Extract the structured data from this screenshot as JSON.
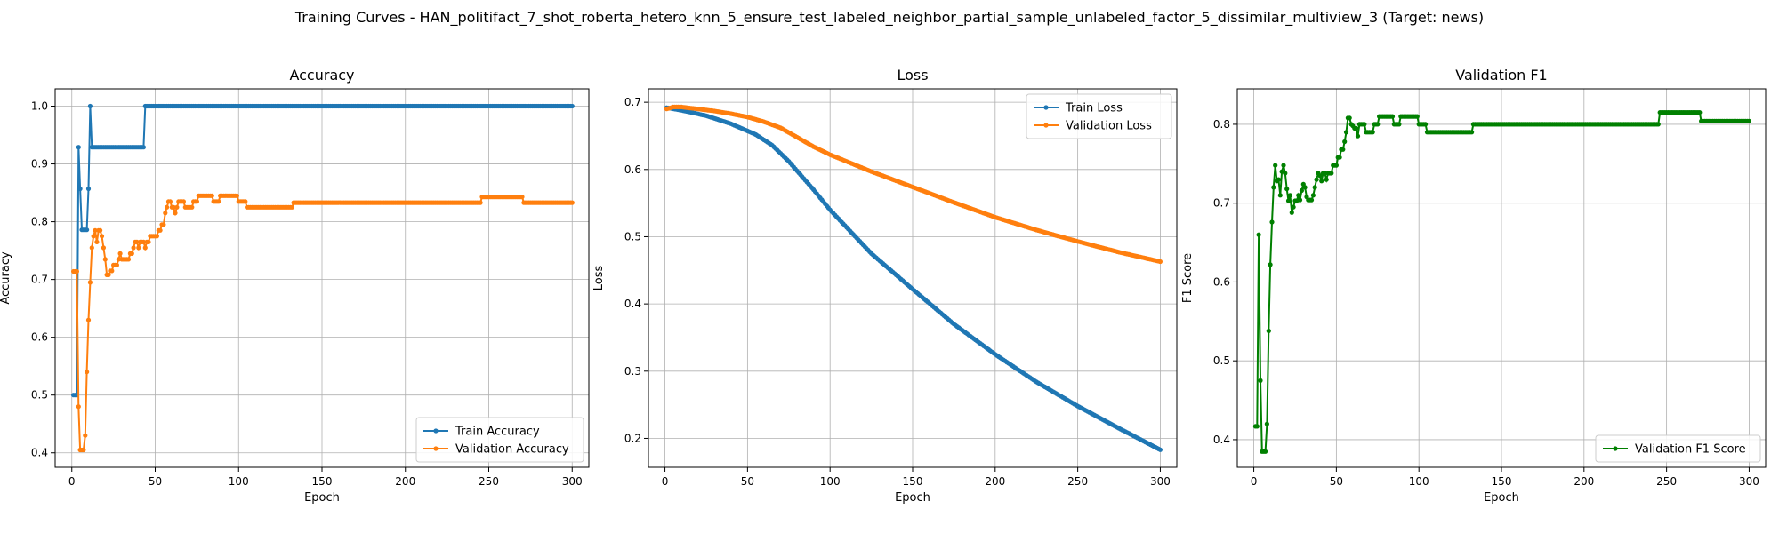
{
  "figure": {
    "suptitle": "Training Curves - HAN_politifact_7_shot_roberta_hetero_knn_5_ensure_test_labeled_neighbor_partial_sample_unlabeled_factor_5_dissimilar_multiview_3 (Target: news)"
  },
  "colors": {
    "blue": "#1f77b4",
    "orange": "#ff7f0e",
    "green": "#008000"
  },
  "chart_data": [
    {
      "type": "line",
      "title": "Accuracy",
      "xlabel": "Epoch",
      "ylabel": "Accuracy",
      "xlim": [
        -10,
        310
      ],
      "ylim": [
        0.375,
        1.03
      ],
      "xticks": [
        0,
        50,
        100,
        150,
        200,
        250,
        300
      ],
      "yticks": [
        0.4,
        0.5,
        0.6,
        0.7,
        0.8,
        0.9,
        1.0
      ],
      "grid": true,
      "legend": "lower-right",
      "series": [
        {
          "name": "Train Accuracy",
          "color": "#1f77b4",
          "points": [
            [
              1,
              0.5
            ],
            [
              2,
              0.5
            ],
            [
              3,
              0.5
            ],
            [
              4,
              0.929
            ],
            [
              5,
              0.857
            ],
            [
              6,
              0.786
            ],
            [
              7,
              0.786
            ],
            [
              8,
              0.786
            ],
            [
              9,
              0.786
            ],
            [
              10,
              0.857
            ],
            [
              11,
              1.0
            ],
            [
              12,
              0.929
            ],
            [
              20,
              0.929
            ],
            [
              30,
              0.929
            ],
            [
              43,
              0.929
            ],
            [
              44,
              1.0
            ],
            [
              60,
              1.0
            ],
            [
              100,
              1.0
            ],
            [
              150,
              1.0
            ],
            [
              200,
              1.0
            ],
            [
              250,
              1.0
            ],
            [
              300,
              1.0
            ]
          ]
        },
        {
          "name": "Validation Accuracy",
          "color": "#ff7f0e",
          "points": [
            [
              1,
              0.714
            ],
            [
              2,
              0.714
            ],
            [
              3,
              0.714
            ],
            [
              4,
              0.48
            ],
            [
              5,
              0.405
            ],
            [
              6,
              0.405
            ],
            [
              7,
              0.405
            ],
            [
              8,
              0.43
            ],
            [
              9,
              0.54
            ],
            [
              10,
              0.63
            ],
            [
              11,
              0.695
            ],
            [
              12,
              0.755
            ],
            [
              13,
              0.775
            ],
            [
              14,
              0.785
            ],
            [
              15,
              0.765
            ],
            [
              16,
              0.785
            ],
            [
              17,
              0.785
            ],
            [
              18,
              0.775
            ],
            [
              19,
              0.755
            ],
            [
              20,
              0.735
            ],
            [
              21,
              0.708
            ],
            [
              22,
              0.708
            ],
            [
              23,
              0.715
            ],
            [
              24,
              0.715
            ],
            [
              25,
              0.725
            ],
            [
              26,
              0.725
            ],
            [
              27,
              0.725
            ],
            [
              28,
              0.735
            ],
            [
              29,
              0.745
            ],
            [
              30,
              0.735
            ],
            [
              31,
              0.735
            ],
            [
              32,
              0.735
            ],
            [
              33,
              0.735
            ],
            [
              34,
              0.735
            ],
            [
              35,
              0.745
            ],
            [
              36,
              0.745
            ],
            [
              37,
              0.755
            ],
            [
              38,
              0.765
            ],
            [
              39,
              0.765
            ],
            [
              40,
              0.755
            ],
            [
              41,
              0.765
            ],
            [
              42,
              0.765
            ],
            [
              43,
              0.765
            ],
            [
              44,
              0.755
            ],
            [
              45,
              0.765
            ],
            [
              46,
              0.765
            ],
            [
              47,
              0.775
            ],
            [
              48,
              0.775
            ],
            [
              49,
              0.775
            ],
            [
              50,
              0.775
            ],
            [
              51,
              0.775
            ],
            [
              52,
              0.785
            ],
            [
              53,
              0.785
            ],
            [
              54,
              0.795
            ],
            [
              55,
              0.795
            ],
            [
              56,
              0.815
            ],
            [
              57,
              0.825
            ],
            [
              58,
              0.835
            ],
            [
              59,
              0.835
            ],
            [
              60,
              0.825
            ],
            [
              61,
              0.825
            ],
            [
              62,
              0.815
            ],
            [
              63,
              0.825
            ],
            [
              64,
              0.835
            ],
            [
              65,
              0.835
            ],
            [
              66,
              0.835
            ],
            [
              67,
              0.835
            ],
            [
              68,
              0.825
            ],
            [
              69,
              0.825
            ],
            [
              70,
              0.825
            ],
            [
              71,
              0.825
            ],
            [
              72,
              0.825
            ],
            [
              73,
              0.835
            ],
            [
              74,
              0.835
            ],
            [
              75,
              0.835
            ],
            [
              76,
              0.845
            ],
            [
              80,
              0.845
            ],
            [
              84,
              0.845
            ],
            [
              85,
              0.835
            ],
            [
              88,
              0.835
            ],
            [
              89,
              0.845
            ],
            [
              99,
              0.845
            ],
            [
              100,
              0.835
            ],
            [
              104,
              0.835
            ],
            [
              105,
              0.825
            ],
            [
              132,
              0.825
            ],
            [
              133,
              0.833
            ],
            [
              245,
              0.833
            ],
            [
              246,
              0.843
            ],
            [
              270,
              0.843
            ],
            [
              271,
              0.833
            ],
            [
              300,
              0.833
            ]
          ]
        }
      ]
    },
    {
      "type": "line",
      "title": "Loss",
      "xlabel": "Epoch",
      "ylabel": "Loss",
      "xlim": [
        -10,
        310
      ],
      "ylim": [
        0.157,
        0.72
      ],
      "xticks": [
        0,
        50,
        100,
        150,
        200,
        250,
        300
      ],
      "yticks": [
        0.2,
        0.3,
        0.4,
        0.5,
        0.6,
        0.7
      ],
      "grid": true,
      "legend": "upper-right",
      "series": [
        {
          "name": "Train Loss",
          "color": "#1f77b4",
          "points": [
            [
              1,
              0.692
            ],
            [
              10,
              0.688
            ],
            [
              25,
              0.68
            ],
            [
              40,
              0.668
            ],
            [
              55,
              0.652
            ],
            [
              65,
              0.636
            ],
            [
              75,
              0.612
            ],
            [
              90,
              0.57
            ],
            [
              100,
              0.54
            ],
            [
              125,
              0.475
            ],
            [
              150,
              0.422
            ],
            [
              175,
              0.37
            ],
            [
              200,
              0.325
            ],
            [
              225,
              0.284
            ],
            [
              250,
              0.248
            ],
            [
              275,
              0.215
            ],
            [
              300,
              0.183
            ]
          ]
        },
        {
          "name": "Validation Loss",
          "color": "#ff7f0e",
          "points": [
            [
              1,
              0.69
            ],
            [
              5,
              0.693
            ],
            [
              10,
              0.693
            ],
            [
              20,
              0.69
            ],
            [
              30,
              0.687
            ],
            [
              40,
              0.683
            ],
            [
              50,
              0.678
            ],
            [
              60,
              0.671
            ],
            [
              70,
              0.662
            ],
            [
              80,
              0.648
            ],
            [
              90,
              0.634
            ],
            [
              100,
              0.622
            ],
            [
              125,
              0.597
            ],
            [
              150,
              0.574
            ],
            [
              175,
              0.551
            ],
            [
              200,
              0.529
            ],
            [
              225,
              0.51
            ],
            [
              250,
              0.493
            ],
            [
              275,
              0.477
            ],
            [
              300,
              0.463
            ]
          ]
        }
      ]
    },
    {
      "type": "line",
      "title": "Validation F1",
      "xlabel": "Epoch",
      "ylabel": "F1 Score",
      "xlim": [
        -10,
        310
      ],
      "ylim": [
        0.365,
        0.845
      ],
      "xticks": [
        0,
        50,
        100,
        150,
        200,
        250,
        300
      ],
      "yticks": [
        0.4,
        0.5,
        0.6,
        0.7,
        0.8
      ],
      "grid": true,
      "legend": "lower-right",
      "series": [
        {
          "name": "Validation F1 Score",
          "color": "#008000",
          "points": [
            [
              1,
              0.417
            ],
            [
              2,
              0.417
            ],
            [
              3,
              0.66
            ],
            [
              4,
              0.475
            ],
            [
              5,
              0.385
            ],
            [
              6,
              0.385
            ],
            [
              7,
              0.385
            ],
            [
              8,
              0.42
            ],
            [
              9,
              0.538
            ],
            [
              10,
              0.622
            ],
            [
              11,
              0.676
            ],
            [
              12,
              0.72
            ],
            [
              13,
              0.748
            ],
            [
              14,
              0.728
            ],
            [
              15,
              0.73
            ],
            [
              16,
              0.71
            ],
            [
              17,
              0.74
            ],
            [
              18,
              0.748
            ],
            [
              19,
              0.738
            ],
            [
              20,
              0.718
            ],
            [
              21,
              0.703
            ],
            [
              22,
              0.71
            ],
            [
              23,
              0.688
            ],
            [
              24,
              0.695
            ],
            [
              25,
              0.703
            ],
            [
              26,
              0.703
            ],
            [
              27,
              0.71
            ],
            [
              28,
              0.704
            ],
            [
              29,
              0.716
            ],
            [
              30,
              0.724
            ],
            [
              31,
              0.72
            ],
            [
              32,
              0.708
            ],
            [
              33,
              0.704
            ],
            [
              34,
              0.704
            ],
            [
              35,
              0.704
            ],
            [
              36,
              0.71
            ],
            [
              37,
              0.72
            ],
            [
              38,
              0.73
            ],
            [
              39,
              0.738
            ],
            [
              40,
              0.735
            ],
            [
              41,
              0.728
            ],
            [
              42,
              0.738
            ],
            [
              43,
              0.738
            ],
            [
              44,
              0.73
            ],
            [
              45,
              0.738
            ],
            [
              46,
              0.738
            ],
            [
              47,
              0.738
            ],
            [
              48,
              0.748
            ],
            [
              49,
              0.748
            ],
            [
              50,
              0.748
            ],
            [
              51,
              0.758
            ],
            [
              52,
              0.758
            ],
            [
              53,
              0.768
            ],
            [
              54,
              0.768
            ],
            [
              55,
              0.778
            ],
            [
              56,
              0.79
            ],
            [
              57,
              0.808
            ],
            [
              58,
              0.808
            ],
            [
              59,
              0.8
            ],
            [
              60,
              0.798
            ],
            [
              61,
              0.795
            ],
            [
              62,
              0.795
            ],
            [
              63,
              0.785
            ],
            [
              64,
              0.8
            ],
            [
              65,
              0.8
            ],
            [
              66,
              0.8
            ],
            [
              67,
              0.8
            ],
            [
              68,
              0.79
            ],
            [
              69,
              0.79
            ],
            [
              70,
              0.79
            ],
            [
              71,
              0.79
            ],
            [
              72,
              0.79
            ],
            [
              73,
              0.8
            ],
            [
              74,
              0.8
            ],
            [
              75,
              0.8
            ],
            [
              76,
              0.81
            ],
            [
              80,
              0.81
            ],
            [
              84,
              0.81
            ],
            [
              85,
              0.8
            ],
            [
              88,
              0.8
            ],
            [
              89,
              0.81
            ],
            [
              99,
              0.81
            ],
            [
              100,
              0.8
            ],
            [
              104,
              0.8
            ],
            [
              105,
              0.79
            ],
            [
              132,
              0.79
            ],
            [
              133,
              0.8
            ],
            [
              245,
              0.8
            ],
            [
              246,
              0.815
            ],
            [
              270,
              0.815
            ],
            [
              271,
              0.804
            ],
            [
              300,
              0.804
            ]
          ]
        }
      ]
    }
  ]
}
